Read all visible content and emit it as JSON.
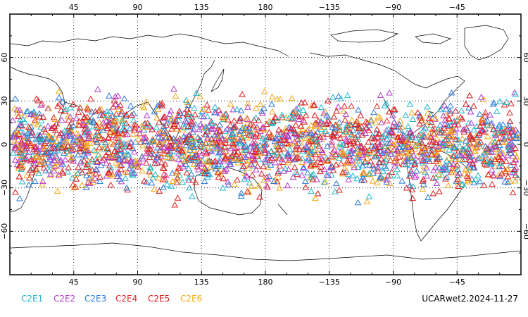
{
  "map": {
    "projection": "cylindrical-equidistant",
    "center_longitude": 180,
    "lat_range": [
      -90,
      90
    ],
    "lon_range": [
      0,
      360
    ],
    "marker_shape": "open-triangle",
    "grid": "dotted",
    "top_lon_labels": [
      "45",
      "90",
      "135",
      "180",
      "−135",
      "−90",
      "−45"
    ],
    "bottom_lon_labels": [
      "45",
      "90",
      "135",
      "180",
      "−135",
      "−90",
      "−45"
    ],
    "left_lat_labels": [
      "60",
      "30",
      "0",
      "−30",
      "−60"
    ],
    "right_lat_labels": [
      "60",
      "30",
      "0",
      "−30",
      "−60"
    ]
  },
  "legend": [
    {
      "label": "C2E1",
      "color": "#1fb8c9"
    },
    {
      "label": "C2E2",
      "color": "#b43ccf"
    },
    {
      "label": "C2E3",
      "color": "#2a7bd6"
    },
    {
      "label": "C2E4",
      "color": "#e02424"
    },
    {
      "label": "C2E5",
      "color": "#d81818"
    },
    {
      "label": "C2E6",
      "color": "#f2a81a"
    }
  ],
  "stamp": "UCARwet2.2024-11-27"
}
